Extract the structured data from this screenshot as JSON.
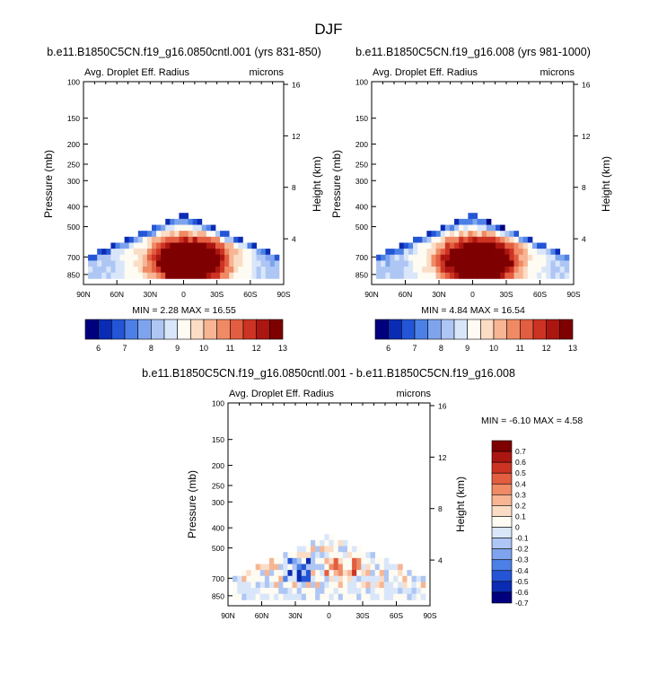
{
  "figure": {
    "title": "DJF"
  },
  "colors": {
    "background": "#ffffff",
    "axis": "#000000",
    "abs_scale": [
      "#00007f",
      "#0a2bb4",
      "#2455d6",
      "#4c80e6",
      "#7ea4ee",
      "#aec6f4",
      "#d9e6fa",
      "#fdfbf2",
      "#fbdcc5",
      "#f7b593",
      "#ef8a65",
      "#e35d40",
      "#cd3323",
      "#ac1611",
      "#7f0000"
    ],
    "diff_scale": [
      "#00007f",
      "#0a2bb4",
      "#2455d6",
      "#4c80e6",
      "#7ea4ee",
      "#aec6f4",
      "#d9e6fa",
      "#fdfbf2",
      "#fbdcc5",
      "#f7b593",
      "#ef8a65",
      "#e35d40",
      "#cd3323",
      "#ac1611",
      "#7f0000"
    ]
  },
  "chart_data": [
    {
      "type": "heatmap",
      "id": "panel1",
      "title": "b.e11.B1850C5CN.f19_g16.0850cntl.001 (yrs 831-850)",
      "field_label": "Avg. Droplet Eff. Radius",
      "units_label": "microns",
      "ylabel": "Pressure (mb)",
      "ylabel_right": "Height (km)",
      "xlabel": "",
      "x_ticks": [
        "90N",
        "60N",
        "30N",
        "0",
        "30S",
        "60S",
        "90S"
      ],
      "x_tick_values": [
        90,
        60,
        30,
        0,
        -30,
        -60,
        -90
      ],
      "xlim": [
        90,
        -90
      ],
      "y_ticks": [
        "100",
        "150",
        "200",
        "250",
        "300",
        "400",
        "500",
        "700",
        "850"
      ],
      "y_tick_values": [
        100,
        150,
        200,
        250,
        300,
        400,
        500,
        700,
        850
      ],
      "ylim": [
        100,
        950
      ],
      "height_ticks": [
        "16",
        "12",
        "8",
        "4"
      ],
      "height_tick_values": [
        16,
        12,
        8,
        4
      ],
      "min_max_text": "MIN =   2.28   MAX =  16.55",
      "min": 2.28,
      "max": 16.55,
      "colorbar": {
        "orientation": "horizontal",
        "labels": [
          "6",
          "7",
          "8",
          "9",
          "10",
          "11",
          "12",
          "13"
        ],
        "levels": [
          5.5,
          6,
          6.5,
          7,
          7.5,
          8,
          8.5,
          9,
          9.5,
          10,
          10.5,
          11,
          11.5,
          12,
          12.5,
          13,
          13.5
        ]
      },
      "field": {
        "peak_lat": -5,
        "peak_p": 730,
        "peak_value": 16.55,
        "top_p_equator": 440,
        "top_p_poles": 700,
        "floor_value": 6.5
      }
    },
    {
      "type": "heatmap",
      "id": "panel2",
      "title": "b.e11.B1850C5CN.f19_g16.008 (yrs 981-1000)",
      "field_label": "Avg. Droplet Eff. Radius",
      "units_label": "microns",
      "ylabel": "Pressure (mb)",
      "ylabel_right": "Height (km)",
      "xlabel": "",
      "x_ticks": [
        "90N",
        "60N",
        "30N",
        "0",
        "30S",
        "60S",
        "90S"
      ],
      "x_tick_values": [
        90,
        60,
        30,
        0,
        -30,
        -60,
        -90
      ],
      "xlim": [
        90,
        -90
      ],
      "y_ticks": [
        "100",
        "150",
        "200",
        "250",
        "300",
        "400",
        "500",
        "700",
        "850"
      ],
      "y_tick_values": [
        100,
        150,
        200,
        250,
        300,
        400,
        500,
        700,
        850
      ],
      "ylim": [
        100,
        950
      ],
      "height_ticks": [
        "16",
        "12",
        "8",
        "4"
      ],
      "height_tick_values": [
        16,
        12,
        8,
        4
      ],
      "min_max_text": "MIN =   4.84   MAX =  16.54",
      "min": 4.84,
      "max": 16.54,
      "colorbar": {
        "orientation": "horizontal",
        "labels": [
          "6",
          "7",
          "8",
          "9",
          "10",
          "11",
          "12",
          "13"
        ],
        "levels": [
          5.5,
          6,
          6.5,
          7,
          7.5,
          8,
          8.5,
          9,
          9.5,
          10,
          10.5,
          11,
          11.5,
          12,
          12.5,
          13,
          13.5
        ]
      },
      "field": {
        "peak_lat": -5,
        "peak_p": 730,
        "peak_value": 16.54,
        "top_p_equator": 440,
        "top_p_poles": 700,
        "floor_value": 6.5
      }
    },
    {
      "type": "heatmap",
      "id": "panel3",
      "title": "b.e11.B1850C5CN.f19_g16.0850cntl.001 - b.e11.B1850C5CN.f19_g16.008",
      "field_label": "Avg. Droplet Eff. Radius",
      "units_label": "microns",
      "ylabel": "Pressure (mb)",
      "ylabel_right": "Height (km)",
      "xlabel": "",
      "x_ticks": [
        "90N",
        "60N",
        "30N",
        "0",
        "30S",
        "60S",
        "90S"
      ],
      "x_tick_values": [
        90,
        60,
        30,
        0,
        -30,
        -60,
        -90
      ],
      "xlim": [
        90,
        -90
      ],
      "y_ticks": [
        "100",
        "150",
        "200",
        "250",
        "300",
        "400",
        "500",
        "700",
        "850"
      ],
      "y_tick_values": [
        100,
        150,
        200,
        250,
        300,
        400,
        500,
        700,
        850
      ],
      "ylim": [
        100,
        950
      ],
      "height_ticks": [
        "16",
        "12",
        "8",
        "4"
      ],
      "height_tick_values": [
        16,
        12,
        8,
        4
      ],
      "min_max_text": "MIN =  -6.10   MAX =   4.58",
      "min": -6.1,
      "max": 4.58,
      "colorbar": {
        "orientation": "vertical",
        "labels": [
          "0.7",
          "0.6",
          "0.5",
          "0.4",
          "0.3",
          "0.2",
          "0.1",
          "0",
          "-0.1",
          "-0.2",
          "-0.3",
          "-0.4",
          "-0.5",
          "-0.6",
          "-0.7"
        ],
        "levels": [
          -0.8,
          -0.7,
          -0.6,
          -0.5,
          -0.4,
          -0.3,
          -0.2,
          -0.1,
          0,
          0.1,
          0.2,
          0.3,
          0.4,
          0.5,
          0.6,
          0.7,
          0.8
        ]
      },
      "field": {
        "top_p_equator": 440,
        "top_p_poles": 700
      }
    }
  ]
}
